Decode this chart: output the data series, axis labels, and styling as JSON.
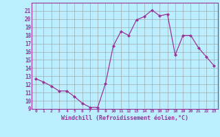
{
  "x": [
    0,
    1,
    2,
    3,
    4,
    5,
    6,
    7,
    8,
    9,
    10,
    11,
    12,
    13,
    14,
    15,
    16,
    17,
    18,
    19,
    20,
    21,
    22,
    23
  ],
  "y": [
    12.7,
    12.3,
    11.8,
    11.2,
    11.2,
    10.5,
    9.7,
    9.2,
    9.2,
    12.1,
    16.7,
    18.5,
    18.0,
    19.9,
    20.3,
    21.1,
    20.4,
    20.6,
    15.6,
    18.0,
    18.0,
    16.5,
    15.4,
    14.3
  ],
  "line_color": "#993399",
  "marker": "D",
  "marker_size": 2,
  "bg_color": "#bbeeff",
  "grid_color": "#999999",
  "xlabel": "Windchill (Refroidissement éolien,°C)",
  "xlabel_color": "#993399",
  "tick_color": "#993399",
  "ylim": [
    9,
    22
  ],
  "xlim": [
    -0.5,
    23.5
  ],
  "yticks": [
    9,
    10,
    11,
    12,
    13,
    14,
    15,
    16,
    17,
    18,
    19,
    20,
    21
  ],
  "xticks": [
    0,
    1,
    2,
    3,
    4,
    5,
    6,
    7,
    8,
    9,
    10,
    11,
    12,
    13,
    14,
    15,
    16,
    17,
    18,
    19,
    20,
    21,
    22,
    23
  ]
}
